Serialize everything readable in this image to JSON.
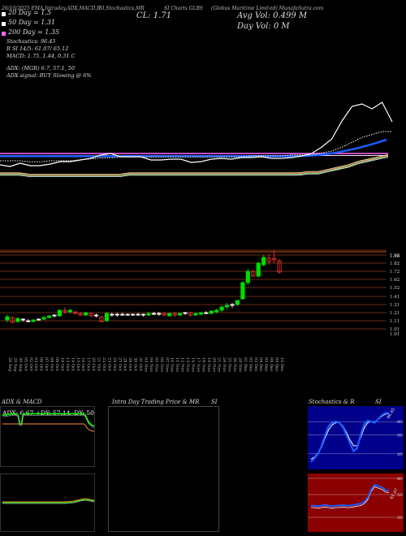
{
  "header": {
    "line1": [
      "26/10/2025 EMA,Intraday,ADX,MACD,R",
      "SI,Stochastics,MR",
      "SI Charts GLBS",
      "(Globus Maritime Limit",
      "ed) MunafaSutra.com"
    ],
    "close": "CL: 1.71",
    "avg_vol": "Avg Vol: 0.499 M",
    "day_vol": "Day Vol: 0   M"
  },
  "ema_legend": [
    {
      "label": "20  Day = 1.5",
      "color": "#ffffff"
    },
    {
      "label": "50  Day = 1.31",
      "color": "#ffffff"
    },
    {
      "label": "200  Day = 1.35",
      "color": "#ff66ff"
    }
  ],
  "indicators": {
    "stochastics": "Stochastics: 96.45",
    "rsi": "R                SI 14/5: 61.07/ 65.12",
    "macd": "MACD: 1.75,  1.44, 0.31 C",
    "adx": "ADX:                              (MGR) 6.7, 57.1,  50",
    "adx_signal": "ADX  signal:                                  BUY Slowing @ 6%"
  },
  "colors": {
    "up": "#00dd00",
    "down": "#ff3333",
    "grid": "#8a3a1a",
    "blue": "#1a5cff",
    "orange_line": "#ff8a3c",
    "panel_red": "#8b0000",
    "panel_blue": "#00008b"
  },
  "chart_data": [
    {
      "type": "line",
      "panel": "EMA",
      "series": [
        {
          "name": "Price",
          "values": [
            1.18,
            1.16,
            1.2,
            1.17,
            1.17,
            1.19,
            1.22,
            1.22,
            1.24,
            1.26,
            1.3,
            1.32,
            1.28,
            1.28,
            1.28,
            1.24,
            1.24,
            1.25,
            1.25,
            1.21,
            1.22,
            1.25,
            1.26,
            1.25,
            1.27,
            1.27,
            1.28,
            1.26,
            1.26,
            1.27,
            1.29,
            1.32,
            1.4,
            1.5,
            1.72,
            1.9,
            1.93,
            1.87,
            1.95,
            1.71
          ]
        },
        {
          "name": "20  Day",
          "values": [
            1.2,
            1.2,
            1.2,
            1.19,
            1.19,
            1.2,
            1.2,
            1.2,
            1.21,
            1.22,
            1.23,
            1.23,
            1.24,
            1.24,
            1.24,
            1.24,
            1.24,
            1.24,
            1.24,
            1.24,
            1.24,
            1.24,
            1.24,
            1.24,
            1.24,
            1.25,
            1.25,
            1.25,
            1.25,
            1.26,
            1.26,
            1.26,
            1.28,
            1.3,
            1.34,
            1.39,
            1.44,
            1.47,
            1.5,
            1.5
          ]
        },
        {
          "name": "50  Day",
          "values": [
            1.22,
            1.22,
            1.22,
            1.21,
            1.21,
            1.21,
            1.21,
            1.21,
            1.21,
            1.21,
            1.21,
            1.21,
            1.21,
            1.22,
            1.22,
            1.22,
            1.22,
            1.22,
            1.22,
            1.22,
            1.22,
            1.22,
            1.22,
            1.22,
            1.22,
            1.22,
            1.22,
            1.22,
            1.22,
            1.22,
            1.22,
            1.23,
            1.23,
            1.24,
            1.25,
            1.26,
            1.28,
            1.29,
            1.3,
            1.31
          ]
        },
        {
          "name": "200  Day",
          "values": [
            1.35,
            1.35,
            1.35,
            1.35,
            1.35,
            1.35,
            1.35,
            1.35,
            1.35,
            1.35,
            1.35,
            1.35,
            1.35,
            1.35,
            1.35,
            1.35,
            1.35,
            1.35,
            1.35,
            1.35,
            1.35,
            1.35,
            1.35,
            1.35,
            1.35,
            1.35,
            1.35,
            1.35,
            1.35,
            1.35,
            1.35,
            1.35,
            1.35,
            1.35,
            1.35,
            1.35,
            1.35,
            1.35,
            1.35,
            1.35
          ]
        }
      ]
    },
    {
      "type": "candlestick",
      "panel": "Daily price",
      "x": [
        "26 Sep",
        "29 Sep",
        "30 Sep",
        "01 Oct",
        "02 Oct",
        "03 Oct",
        "06 Oct",
        "07 Oct",
        "08 Oct",
        "09 Oct",
        "10 Oct",
        "13 Oct",
        "14 Oct",
        "15 Oct",
        "16 Oct",
        "17 Oct",
        "20 Oct",
        "21 Oct",
        "22 Oct",
        "23 Oct",
        "24 Oct",
        "27 Oct",
        "28 Oct",
        "29 Oct",
        "30 Oct",
        "31 Oct",
        "03 Nov",
        "04 Nov",
        "05 Nov",
        "06 Nov",
        "07 Nov",
        "10 Nov",
        "11 Nov",
        "12 Nov",
        "13 Nov",
        "14 Nov",
        "17 Nov",
        "18 Nov",
        "19 Nov",
        "20 Nov",
        "21 Nov",
        "24 Nov",
        "25 Nov",
        "26 Nov",
        "28 Nov",
        "01 Dec",
        "02 Dec",
        "03 Dec",
        "04 Dec",
        "05 Dec",
        "08 Dec",
        "09 Dec",
        "10 Dec"
      ],
      "ohlc": [
        [
          1.12,
          1.19,
          1.09,
          1.16
        ],
        [
          1.15,
          1.16,
          1.08,
          1.09
        ],
        [
          1.1,
          1.15,
          1.09,
          1.14
        ],
        [
          1.13,
          1.14,
          1.1,
          1.12
        ],
        [
          1.11,
          1.13,
          1.09,
          1.1
        ],
        [
          1.1,
          1.13,
          1.1,
          1.12
        ],
        [
          1.12,
          1.14,
          1.11,
          1.13
        ],
        [
          1.13,
          1.17,
          1.12,
          1.15
        ],
        [
          1.15,
          1.18,
          1.14,
          1.17
        ],
        [
          1.17,
          1.19,
          1.15,
          1.18
        ],
        [
          1.17,
          1.25,
          1.16,
          1.24
        ],
        [
          1.24,
          1.28,
          1.2,
          1.22
        ],
        [
          1.22,
          1.26,
          1.2,
          1.24
        ],
        [
          1.22,
          1.22,
          1.19,
          1.2
        ],
        [
          1.2,
          1.22,
          1.17,
          1.18
        ],
        [
          1.18,
          1.22,
          1.17,
          1.21
        ],
        [
          1.2,
          1.21,
          1.16,
          1.17
        ],
        [
          1.17,
          1.2,
          1.15,
          1.18
        ],
        [
          1.16,
          1.17,
          1.09,
          1.1
        ],
        [
          1.11,
          1.22,
          1.1,
          1.2
        ],
        [
          1.19,
          1.21,
          1.16,
          1.18
        ],
        [
          1.18,
          1.21,
          1.16,
          1.19
        ],
        [
          1.19,
          1.21,
          1.17,
          1.19
        ],
        [
          1.19,
          1.2,
          1.17,
          1.18
        ],
        [
          1.18,
          1.2,
          1.17,
          1.19
        ],
        [
          1.19,
          1.21,
          1.17,
          1.18
        ],
        [
          1.18,
          1.2,
          1.16,
          1.19
        ],
        [
          1.18,
          1.22,
          1.17,
          1.2
        ],
        [
          1.2,
          1.22,
          1.18,
          1.19
        ],
        [
          1.19,
          1.22,
          1.17,
          1.2
        ],
        [
          1.2,
          1.21,
          1.17,
          1.18
        ],
        [
          1.17,
          1.21,
          1.17,
          1.2
        ],
        [
          1.2,
          1.22,
          1.16,
          1.18
        ],
        [
          1.18,
          1.21,
          1.17,
          1.2
        ],
        [
          1.2,
          1.22,
          1.18,
          1.21
        ],
        [
          1.21,
          1.22,
          1.16,
          1.18
        ],
        [
          1.18,
          1.21,
          1.17,
          1.2
        ],
        [
          1.19,
          1.22,
          1.18,
          1.21
        ],
        [
          1.21,
          1.23,
          1.19,
          1.2
        ],
        [
          1.2,
          1.24,
          1.19,
          1.23
        ],
        [
          1.22,
          1.26,
          1.2,
          1.24
        ],
        [
          1.24,
          1.3,
          1.22,
          1.28
        ],
        [
          1.28,
          1.33,
          1.25,
          1.3
        ],
        [
          1.3,
          1.33,
          1.27,
          1.31
        ],
        [
          1.31,
          1.37,
          1.29,
          1.36
        ],
        [
          1.38,
          1.6,
          1.37,
          1.58
        ],
        [
          1.58,
          1.75,
          1.55,
          1.72
        ],
        [
          1.72,
          1.74,
          1.65,
          1.66
        ],
        [
          1.66,
          1.84,
          1.64,
          1.82
        ],
        [
          1.8,
          1.92,
          1.78,
          1.89
        ],
        [
          1.88,
          1.93,
          1.8,
          1.84
        ],
        [
          1.88,
          1.98,
          1.82,
          1.86
        ],
        [
          1.85,
          1.87,
          1.69,
          1.71
        ]
      ],
      "yticks": [
        "1.98",
        "1.92",
        "1.82",
        "1.72",
        "1.62",
        "1.52",
        "1.41",
        "1.31",
        "1.21",
        "1.11",
        "1.01",
        "1.01"
      ]
    },
    {
      "type": "line",
      "panel": "ADX & MACD",
      "title": "ADX  & MACD",
      "annotation": "ADX: 6.67  +DY: 57.14  -DY: 50",
      "series": [
        {
          "name": "+DY",
          "values": [
            72,
            72,
            72,
            73,
            73,
            74,
            74,
            74,
            74,
            72,
            60,
            60,
            74,
            74,
            74,
            74,
            74,
            74,
            74,
            74,
            74,
            74,
            74,
            74,
            74,
            74,
            74,
            74,
            74,
            74,
            74,
            74,
            74,
            74,
            74,
            74,
            74,
            74,
            74,
            74,
            74,
            74,
            74,
            74,
            74,
            74,
            74,
            74,
            72,
            66,
            62,
            60,
            58,
            57
          ]
        },
        {
          "name": "-DY",
          "values": [
            60,
            60,
            60,
            60,
            60,
            60,
            60,
            60,
            60,
            60,
            60,
            60,
            60,
            60,
            60,
            60,
            60,
            60,
            60,
            60,
            60,
            60,
            60,
            60,
            60,
            60,
            60,
            60,
            60,
            60,
            60,
            60,
            60,
            60,
            60,
            60,
            60,
            60,
            60,
            60,
            60,
            60,
            60,
            60,
            60,
            60,
            60,
            60,
            58,
            54,
            52,
            51,
            50,
            50
          ]
        }
      ]
    },
    {
      "type": "bar",
      "panel": "Intraday",
      "title": "Intra  Day Trading Price  & MR",
      "title2": "SI",
      "values": []
    },
    {
      "type": "line",
      "panel": "Stochastics & RSI",
      "title": "Stochastics & R",
      "title2": "SI",
      "stoch_label": "96.45",
      "rsi_label": "61.07",
      "yticks": [
        "80",
        "55",
        "20"
      ],
      "rsi_yticks": [
        "80",
        "55",
        "20"
      ],
      "series": [
        {
          "name": "Stochastics %K",
          "values": [
            5,
            12,
            20,
            35,
            55,
            72,
            78,
            80,
            78,
            70,
            55,
            40,
            25,
            30,
            55,
            75,
            82,
            80,
            78,
            85,
            92,
            96,
            96
          ]
        },
        {
          "name": "Stochastics %D",
          "values": [
            10,
            14,
            22,
            32,
            50,
            65,
            74,
            78,
            78,
            72,
            60,
            46,
            35,
            35,
            50,
            68,
            78,
            80,
            80,
            84,
            90,
            94,
            95
          ]
        },
        {
          "name": "RSI",
          "values": [
            38,
            38,
            37,
            38,
            39,
            38,
            37,
            38,
            38,
            39,
            38,
            38,
            39,
            40,
            41,
            44,
            50,
            63,
            70,
            68,
            66,
            62,
            61
          ]
        }
      ]
    }
  ]
}
